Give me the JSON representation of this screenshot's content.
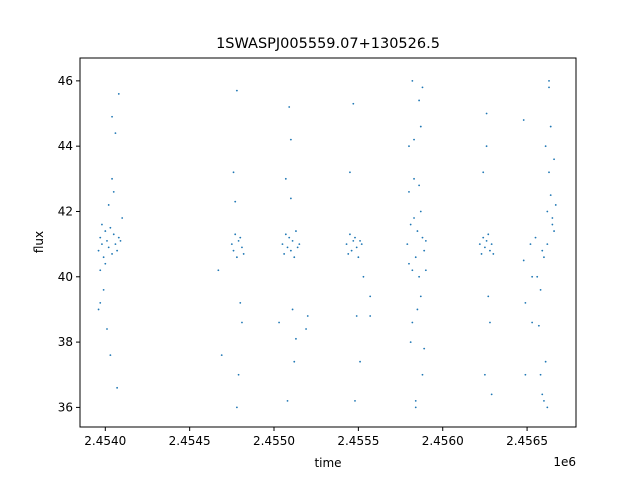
{
  "chart_data": {
    "type": "scatter",
    "title": "1SWASPJ005559.07+130526.5",
    "xlabel": "time",
    "ylabel": "flux",
    "x_offset_label": "1e6",
    "xlim": [
      2.45385,
      2.45679
    ],
    "ylim": [
      35.4,
      46.7
    ],
    "x_ticks": [
      2.454,
      2.4545,
      2.455,
      2.4555,
      2.456,
      2.4565
    ],
    "x_tick_labels": [
      "2.4540",
      "2.4545",
      "2.4550",
      "2.4555",
      "2.4560",
      "2.4565"
    ],
    "y_ticks": [
      36,
      38,
      40,
      42,
      44,
      46
    ],
    "y_tick_labels": [
      "36",
      "38",
      "40",
      "42",
      "44",
      "46"
    ],
    "grid": false,
    "marker_color": "#1f77b4",
    "series": [
      {
        "points_by_cluster": [
          {
            "x": [
              2.45396,
              2.45397,
              2.45398,
              2.45399,
              2.454,
              2.45401,
              2.45402,
              2.45403,
              2.45404,
              2.45405,
              2.45406,
              2.45407,
              2.45408,
              2.45409,
              2.45397,
              2.45399,
              2.45402,
              2.45404,
              2.45406,
              2.45408,
              2.45396,
              2.45401,
              2.45405,
              2.4541,
              2.45397,
              2.45403,
              2.45407,
              2.45398,
              2.454,
              2.45404
            ],
            "y": [
              40.8,
              41.2,
              41.0,
              40.6,
              41.4,
              41.1,
              40.9,
              41.5,
              40.7,
              41.3,
              41.0,
              40.8,
              41.2,
              41.1,
              39.2,
              39.6,
              42.2,
              43.0,
              44.4,
              45.6,
              39.0,
              38.4,
              42.6,
              41.8,
              40.2,
              37.6,
              36.6,
              41.6,
              40.4,
              44.9
            ]
          },
          {
            "x": [
              2.45475,
              2.45476,
              2.45477,
              2.45478,
              2.45479,
              2.4548,
              2.45481,
              2.45482,
              2.45476,
              2.45478,
              2.4548,
              2.45477,
              2.45479,
              2.45481,
              2.45478,
              2.45467,
              2.45469
            ],
            "y": [
              41.0,
              40.8,
              41.3,
              40.6,
              41.1,
              41.2,
              40.9,
              40.7,
              43.2,
              45.7,
              39.2,
              42.3,
              37.0,
              38.6,
              36.0,
              40.2,
              37.6
            ]
          },
          {
            "x": [
              2.45505,
              2.45506,
              2.45507,
              2.45508,
              2.45509,
              2.4551,
              2.45511,
              2.45512,
              2.45513,
              2.45514,
              2.45515,
              2.45507,
              2.45509,
              2.45511,
              2.45513,
              2.45508,
              2.4551,
              2.45512,
              2.45503,
              2.45519,
              2.4552,
              2.4551
            ],
            "y": [
              41.0,
              40.7,
              41.3,
              40.9,
              41.2,
              40.8,
              41.1,
              40.6,
              41.4,
              40.9,
              41.0,
              43.0,
              45.2,
              39.0,
              38.1,
              36.2,
              44.2,
              37.4,
              38.6,
              38.4,
              38.8,
              42.4
            ]
          },
          {
            "x": [
              2.45543,
              2.45544,
              2.45545,
              2.45546,
              2.45547,
              2.45548,
              2.45549,
              2.4555,
              2.45551,
              2.45552,
              2.45545,
              2.45547,
              2.45549,
              2.45551,
              2.45548,
              2.45553,
              2.45557,
              2.45557
            ],
            "y": [
              41.0,
              40.7,
              41.3,
              40.8,
              41.1,
              41.2,
              40.9,
              40.6,
              41.1,
              41.0,
              43.2,
              45.3,
              38.8,
              37.4,
              36.2,
              40.0,
              39.4,
              38.8
            ]
          },
          {
            "x": [
              2.45579,
              2.4558,
              2.45581,
              2.45582,
              2.45583,
              2.45584,
              2.45585,
              2.45586,
              2.45587,
              2.45588,
              2.45589,
              2.4559,
              2.4558,
              2.45582,
              2.45584,
              2.45586,
              2.45588,
              2.45581,
              2.45583,
              2.45585,
              2.45587,
              2.45589,
              2.4558,
              2.45584,
              2.45588,
              2.45582,
              2.45586,
              2.4559,
              2.45583,
              2.45587
            ],
            "y": [
              41.0,
              40.4,
              41.6,
              40.2,
              41.8,
              40.6,
              41.4,
              40.0,
              42.0,
              41.2,
              40.8,
              41.1,
              44.0,
              46.0,
              36.2,
              45.4,
              37.0,
              38.0,
              43.0,
              39.0,
              44.6,
              37.8,
              42.6,
              36.0,
              45.8,
              38.6,
              42.8,
              40.2,
              44.2,
              39.4
            ]
          },
          {
            "x": [
              2.45622,
              2.45623,
              2.45624,
              2.45625,
              2.45626,
              2.45627,
              2.45628,
              2.45629,
              2.4563,
              2.45624,
              2.45626,
              2.45628,
              2.45625,
              2.45627,
              2.45629,
              2.45626
            ],
            "y": [
              41.0,
              40.7,
              41.2,
              40.9,
              41.1,
              41.3,
              40.8,
              41.0,
              40.7,
              43.2,
              45.0,
              38.6,
              37.0,
              39.4,
              36.4,
              44.0
            ]
          },
          {
            "x": [
              2.45648,
              2.45649,
              2.45652,
              2.45653,
              2.45655,
              2.45656,
              2.45657,
              2.45658,
              2.45659,
              2.4566,
              2.45661,
              2.45662,
              2.45662,
              2.45663,
              2.45664,
              2.45665,
              2.45666,
              2.45666,
              2.45667,
              2.45662,
              2.45663,
              2.45664,
              2.4566,
              2.45658,
              2.45663,
              2.45665,
              2.45661,
              2.45648,
              2.45649,
              2.45653,
              2.45659
            ],
            "y": [
              40.5,
              39.2,
              41.0,
              38.6,
              41.2,
              40.0,
              38.5,
              37.0,
              36.4,
              36.2,
              37.4,
              41.0,
              42.0,
              43.2,
              42.5,
              41.8,
              43.6,
              41.4,
              42.2,
              36.0,
              45.8,
              44.6,
              40.6,
              39.6,
              46.0,
              41.6,
              44.0,
              44.8,
              37.0,
              40.0,
              40.8
            ]
          }
        ]
      }
    ]
  }
}
